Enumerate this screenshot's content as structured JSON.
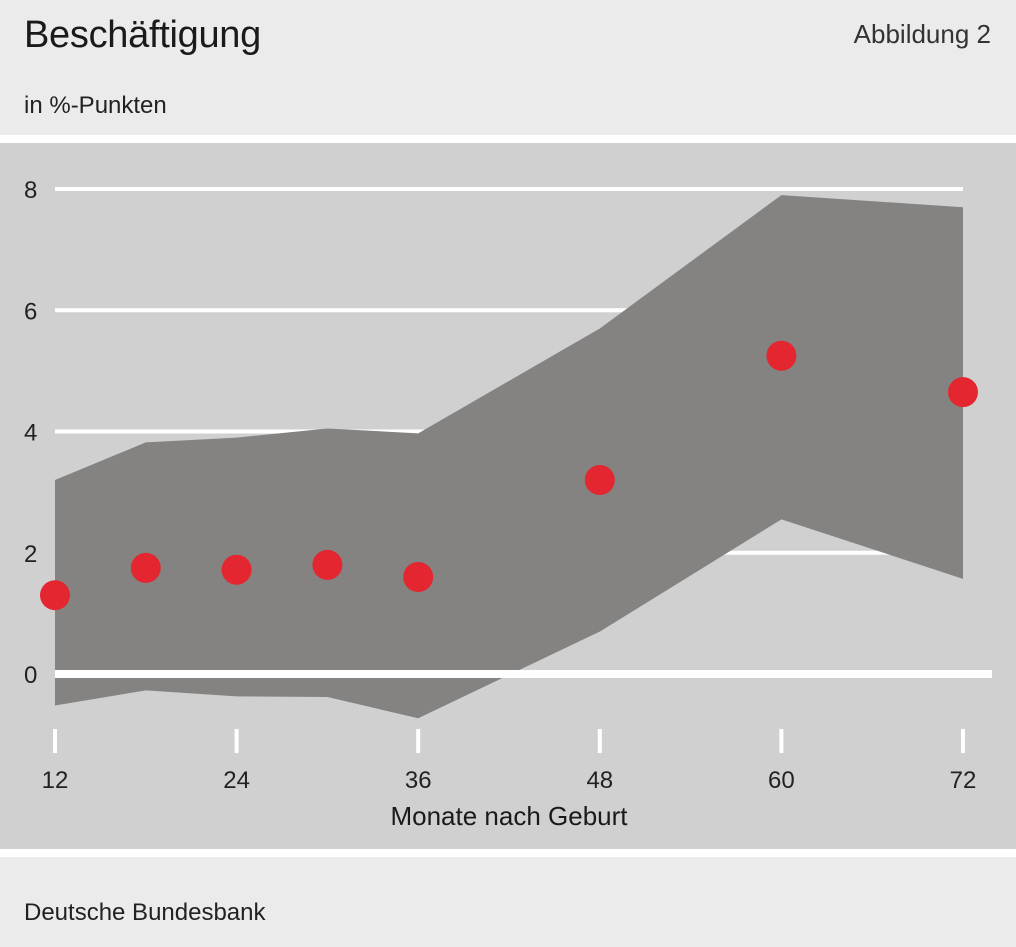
{
  "header": {
    "title": "Beschäftigung",
    "figure_label": "Abbildung 2",
    "unit_label": "in %-Punkten"
  },
  "footer": {
    "source": "Deutsche Bundesbank"
  },
  "colors": {
    "band": "#858382",
    "point": "#e3262f",
    "grid": "#ffffff",
    "plot_background": "#d0d0d0",
    "page_background": "#ebebeb"
  },
  "chart_data": {
    "type": "scatter",
    "title": "Beschäftigung",
    "subtitle": "in %-Punkten",
    "xlabel": "Monate nach Geburt",
    "ylabel": "",
    "xlim": [
      12,
      72
    ],
    "ylim": [
      -0.8,
      8
    ],
    "yticks": [
      0,
      2,
      4,
      6,
      8
    ],
    "xticks": [
      12,
      24,
      36,
      48,
      60,
      72
    ],
    "grid": true,
    "points": {
      "x": [
        12,
        18,
        24,
        30,
        36,
        48,
        60,
        72
      ],
      "y": [
        1.3,
        1.75,
        1.72,
        1.8,
        1.6,
        3.2,
        5.25,
        4.65
      ]
    },
    "band": {
      "x": [
        12,
        18,
        24,
        30,
        36,
        48,
        60,
        72
      ],
      "upper": [
        3.2,
        3.82,
        3.9,
        4.05,
        3.97,
        5.7,
        7.9,
        7.7
      ],
      "lower": [
        -0.52,
        -0.27,
        -0.37,
        -0.38,
        -0.73,
        0.7,
        2.55,
        1.57
      ]
    }
  }
}
